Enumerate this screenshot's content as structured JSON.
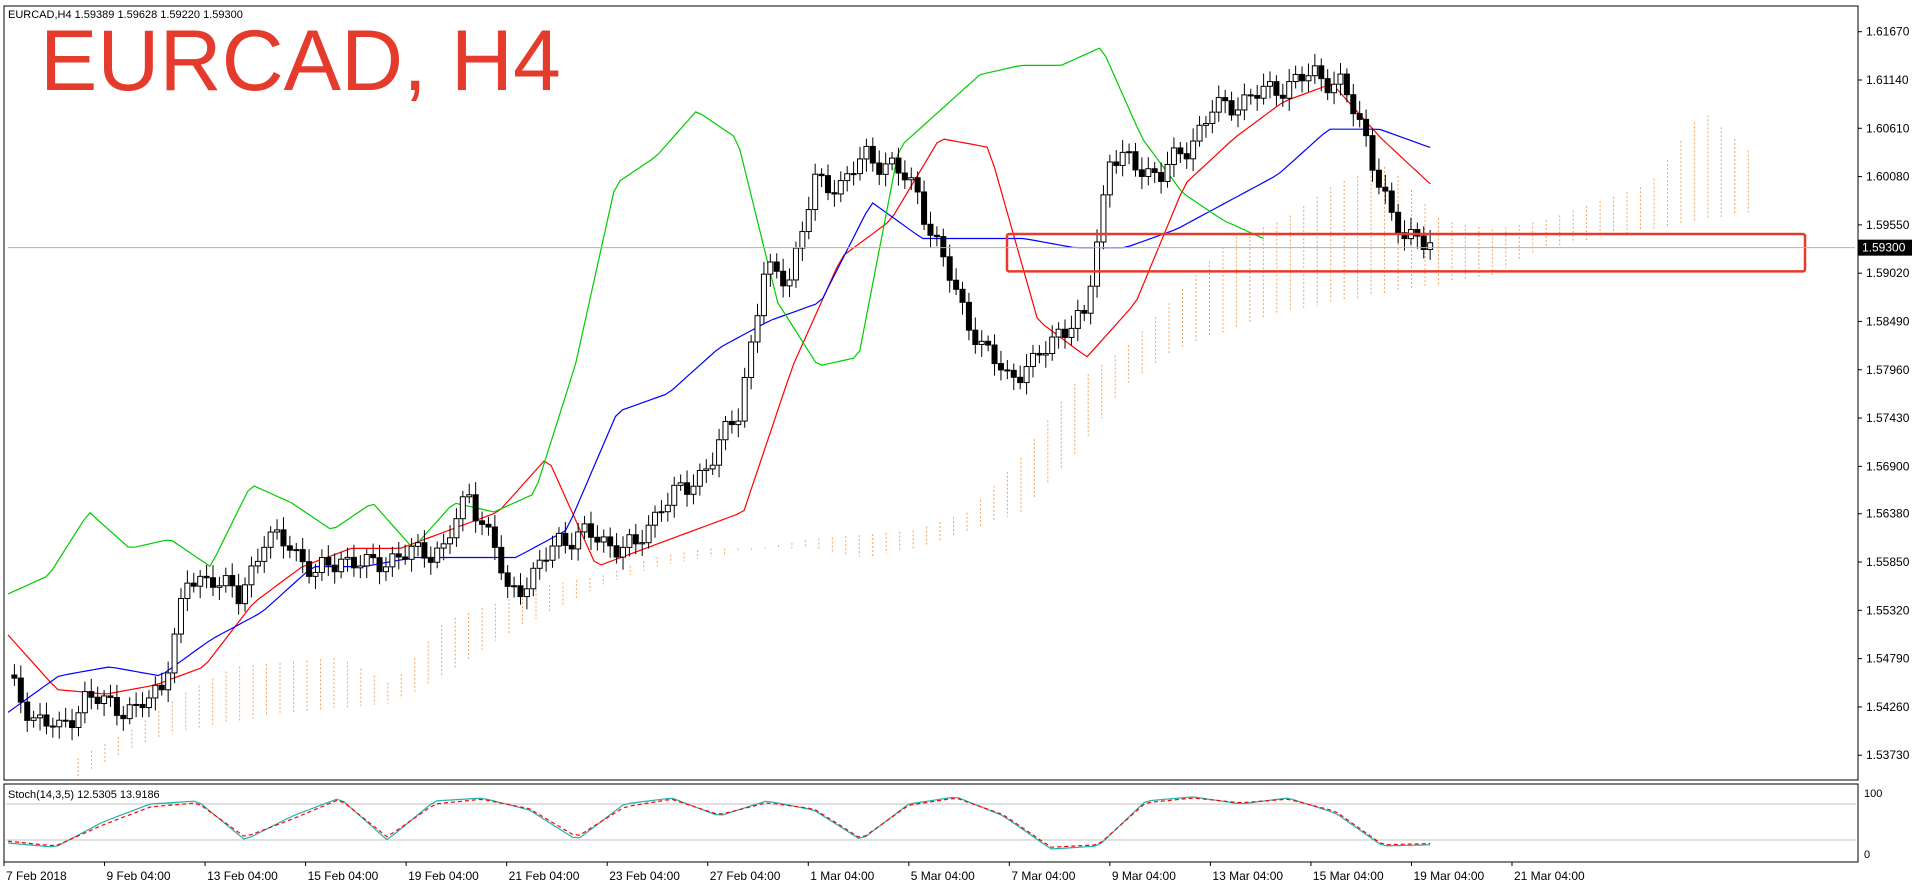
{
  "header": {
    "symbol_info": "EURCAD,H4  1.59389 1.59628 1.59220 1.59300",
    "title": "EURCAD, H4"
  },
  "current_price": 1.593,
  "stochastic": {
    "label": "Stoch(14,3,5) 12.5305 13.9186",
    "level_high": "100",
    "level_low": "0"
  },
  "colors": {
    "bull_candle": "#ffffff",
    "bear_candle": "#000000",
    "tenkan": "#ff0000",
    "kijun": "#0000ff",
    "chikou": "#00cc00",
    "kumo": "#f4a460",
    "zone": "#e53b2c",
    "stoch_main": "#20b2aa",
    "stoch_signal": "#ff0000"
  },
  "chart_data": {
    "type": "candlestick",
    "title": "EURCAD, H4",
    "y_ticks": [
      "1.61670",
      "1.61140",
      "1.60610",
      "1.60080",
      "1.59550",
      "1.59020",
      "1.58490",
      "1.57960",
      "1.57430",
      "1.56900",
      "1.56380",
      "1.55850",
      "1.55320",
      "1.54790",
      "1.54260",
      "1.53730"
    ],
    "ylim": [
      1.5348,
      1.6193
    ],
    "x_ticks": [
      "7 Feb 2018",
      "9 Feb 04:00",
      "13 Feb 04:00",
      "15 Feb 04:00",
      "19 Feb 04:00",
      "21 Feb 04:00",
      "23 Feb 04:00",
      "27 Feb 04:00",
      "1 Mar 04:00",
      "5 Mar 04:00",
      "7 Mar 04:00",
      "9 Mar 04:00",
      "13 Mar 04:00",
      "15 Mar 04:00",
      "19 Mar 04:00",
      "21 Mar 04:00"
    ],
    "resistance_zone": [
      1.5904,
      1.5945
    ],
    "anchors": [
      [
        0,
        1.5455
      ],
      [
        4,
        1.5415
      ],
      [
        8,
        1.54
      ],
      [
        12,
        1.5435
      ],
      [
        16,
        1.543
      ],
      [
        20,
        1.542
      ],
      [
        24,
        1.545
      ],
      [
        28,
        1.556
      ],
      [
        32,
        1.557
      ],
      [
        36,
        1.5545
      ],
      [
        40,
        1.561
      ],
      [
        44,
        1.5605
      ],
      [
        48,
        1.557
      ],
      [
        52,
        1.559
      ],
      [
        56,
        1.558
      ],
      [
        60,
        1.559
      ],
      [
        64,
        1.5595
      ],
      [
        68,
        1.56
      ],
      [
        72,
        1.566
      ],
      [
        76,
        1.56
      ],
      [
        78,
        1.555
      ],
      [
        82,
        1.557
      ],
      [
        86,
        1.561
      ],
      [
        90,
        1.5615
      ],
      [
        94,
        1.5605
      ],
      [
        98,
        1.56
      ],
      [
        102,
        1.565
      ],
      [
        106,
        1.5665
      ],
      [
        110,
        1.57
      ],
      [
        114,
        1.575
      ],
      [
        118,
        1.59
      ],
      [
        122,
        1.59
      ],
      [
        126,
        1.6
      ],
      [
        130,
        1.6
      ],
      [
        134,
        1.603
      ],
      [
        138,
        1.602
      ],
      [
        142,
        1.599
      ],
      [
        144,
        1.595
      ],
      [
        148,
        1.588
      ],
      [
        152,
        1.582
      ],
      [
        156,
        1.579
      ],
      [
        160,
        1.58
      ],
      [
        164,
        1.584
      ],
      [
        168,
        1.585
      ],
      [
        172,
        1.603
      ],
      [
        176,
        1.602
      ],
      [
        180,
        1.601
      ],
      [
        184,
        1.604
      ],
      [
        188,
        1.608
      ],
      [
        192,
        1.609
      ],
      [
        196,
        1.61
      ],
      [
        200,
        1.611
      ],
      [
        204,
        1.612
      ],
      [
        208,
        1.611
      ],
      [
        212,
        1.605
      ],
      [
        216,
        1.596
      ],
      [
        218,
        1.594
      ],
      [
        220,
        1.595
      ],
      [
        222,
        1.593
      ]
    ],
    "tenkan": [
      1.5505,
      1.5445,
      1.544,
      1.545,
      1.547,
      1.554,
      1.558,
      1.56,
      1.56,
      1.562,
      1.564,
      1.57,
      1.558,
      1.56,
      1.562,
      1.564,
      1.58,
      1.592,
      1.596,
      1.605,
      1.604,
      1.585,
      1.581,
      1.587,
      1.6,
      1.605,
      1.609,
      1.611,
      1.605,
      1.6
    ],
    "kijun": [
      1.542,
      1.546,
      1.547,
      1.546,
      1.55,
      1.553,
      1.558,
      1.558,
      1.559,
      1.559,
      1.559,
      1.562,
      1.575,
      1.577,
      1.582,
      1.585,
      1.587,
      1.598,
      1.594,
      1.594,
      1.594,
      1.593,
      1.593,
      1.595,
      1.598,
      1.601,
      1.606,
      1.606,
      1.604
    ],
    "chikou": [
      1.555,
      1.557,
      1.564,
      1.56,
      1.561,
      1.558,
      1.567,
      1.565,
      1.562,
      1.565,
      1.56,
      1.565,
      1.564,
      1.566,
      1.58,
      1.6,
      1.603,
      1.608,
      1.605,
      1.587,
      1.58,
      1.581,
      1.604,
      1.608,
      1.612,
      1.613,
      1.613,
      1.615,
      1.605,
      1.599,
      1.596,
      1.594
    ],
    "kumo_top": [
      1.537,
      1.54,
      1.544,
      1.547,
      1.5475,
      1.548,
      1.545,
      1.552,
      1.554,
      1.556,
      1.557,
      1.559,
      1.56,
      1.56,
      1.561,
      1.5615,
      1.562,
      1.564,
      1.57,
      1.578,
      1.582,
      1.588,
      1.594,
      1.596,
      1.6,
      1.602,
      1.596,
      1.595,
      1.596,
      1.598,
      1.6,
      1.608,
      1.603
    ],
    "kumo_bottom": [
      1.535,
      1.538,
      1.54,
      1.541,
      1.542,
      1.5425,
      1.543,
      1.546,
      1.55,
      1.553,
      1.556,
      1.558,
      1.559,
      1.56,
      1.56,
      1.559,
      1.56,
      1.562,
      1.564,
      1.57,
      1.578,
      1.582,
      1.584,
      1.586,
      1.587,
      1.588,
      1.589,
      1.59,
      1.593,
      1.594,
      1.595,
      1.596,
      1.597
    ],
    "stoch_main": [
      15,
      8,
      50,
      80,
      85,
      20,
      60,
      90,
      20,
      85,
      90,
      70,
      20,
      80,
      90,
      60,
      85,
      70,
      20,
      80,
      92,
      60,
      5,
      10,
      85,
      92,
      80,
      90,
      65,
      10,
      12
    ],
    "stoch_signal": [
      18,
      10,
      45,
      75,
      82,
      25,
      55,
      88,
      25,
      80,
      88,
      72,
      25,
      75,
      88,
      62,
      82,
      72,
      22,
      78,
      90,
      62,
      8,
      12,
      82,
      90,
      82,
      88,
      68,
      12,
      14
    ]
  }
}
